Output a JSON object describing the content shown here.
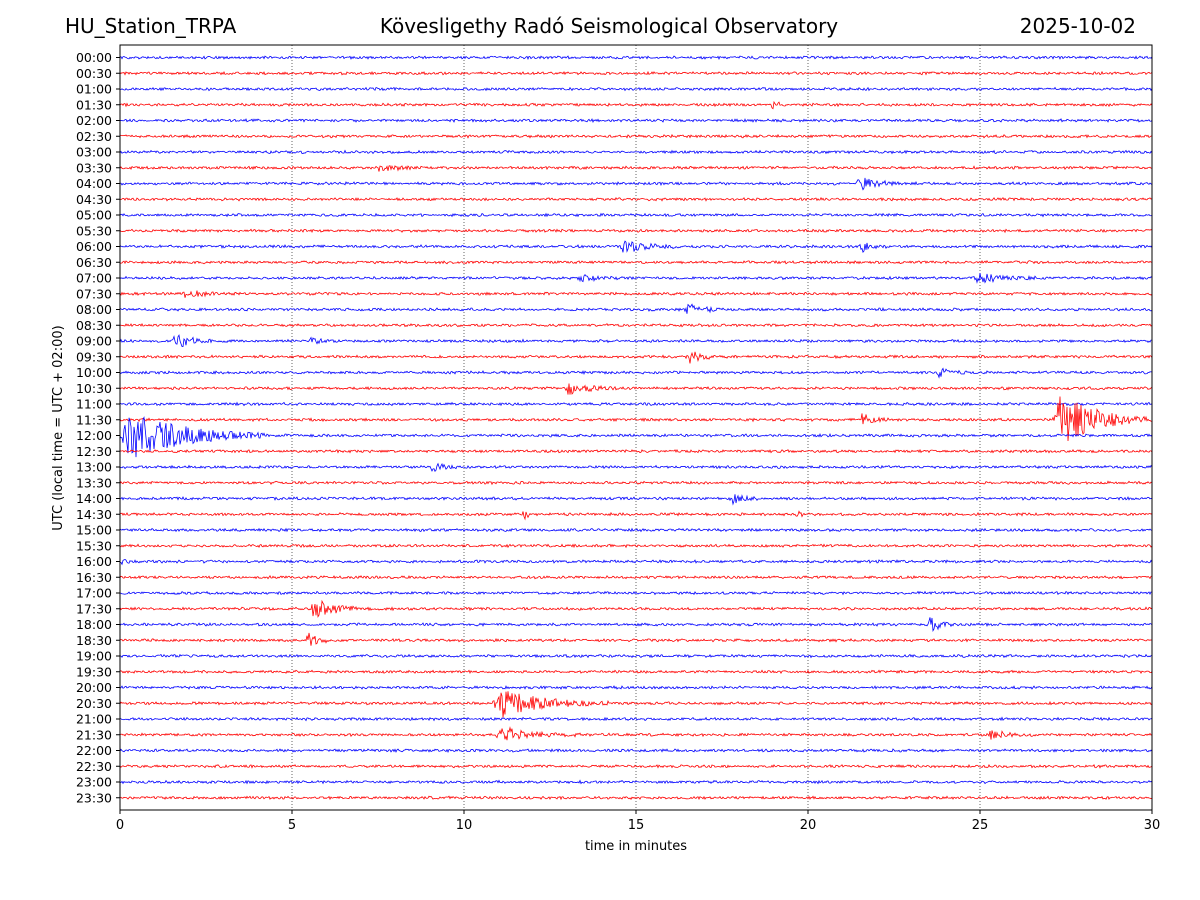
{
  "header": {
    "station": "HU_Station_TRPA",
    "title": "Kövesligethy Radó Seismological Observatory",
    "date": "2025-10-02"
  },
  "chart_data": {
    "type": "line",
    "title": "Kövesligethy Radó Seismological Observatory",
    "xlabel": "time in minutes",
    "ylabel": "UTC (local time = UTC + 02:00)",
    "xlim": [
      0,
      30
    ],
    "xticks": [
      0,
      5,
      10,
      15,
      20,
      25,
      30
    ],
    "xtick_labels": [
      "0",
      "5",
      "10",
      "15",
      "20",
      "25",
      "30"
    ],
    "grid": "vertical dotted at x ticks",
    "row_labels": [
      "00:00",
      "00:30",
      "01:00",
      "01:30",
      "02:00",
      "02:30",
      "03:00",
      "03:30",
      "04:00",
      "04:30",
      "05:00",
      "05:30",
      "06:00",
      "06:30",
      "07:00",
      "07:30",
      "08:00",
      "08:30",
      "09:00",
      "09:30",
      "10:00",
      "10:30",
      "11:00",
      "11:30",
      "12:00",
      "12:30",
      "13:00",
      "13:30",
      "14:00",
      "14:30",
      "15:00",
      "15:30",
      "16:00",
      "16:30",
      "17:00",
      "17:30",
      "18:00",
      "18:30",
      "19:00",
      "19:30",
      "20:00",
      "20:30",
      "21:00",
      "21:30",
      "22:00",
      "22:30",
      "23:00",
      "23:30"
    ],
    "trace_colors": [
      "#0000ff",
      "#ff0000"
    ],
    "noise_amplitude": 1.2,
    "events": [
      {
        "row": 3,
        "start": 18.9,
        "dur": 0.5,
        "amp": 4
      },
      {
        "row": 7,
        "start": 7.4,
        "dur": 1.5,
        "amp": 4
      },
      {
        "row": 8,
        "start": 21.4,
        "dur": 1.5,
        "amp": 6
      },
      {
        "row": 12,
        "start": 14.5,
        "dur": 1.8,
        "amp": 6
      },
      {
        "row": 12,
        "start": 21.5,
        "dur": 0.8,
        "amp": 5
      },
      {
        "row": 14,
        "start": 13.2,
        "dur": 1.3,
        "amp": 4
      },
      {
        "row": 14,
        "start": 24.8,
        "dur": 1.8,
        "amp": 5
      },
      {
        "row": 15,
        "start": 1.8,
        "dur": 1.6,
        "amp": 4
      },
      {
        "row": 16,
        "start": 16.4,
        "dur": 1.3,
        "amp": 6
      },
      {
        "row": 18,
        "start": 1.5,
        "dur": 1.2,
        "amp": 9
      },
      {
        "row": 18,
        "start": 5.5,
        "dur": 0.8,
        "amp": 4
      },
      {
        "row": 19,
        "start": 16.5,
        "dur": 0.8,
        "amp": 7
      },
      {
        "row": 21,
        "start": 12.9,
        "dur": 1.6,
        "amp": 6
      },
      {
        "row": 20,
        "start": 23.7,
        "dur": 1.3,
        "amp": 4
      },
      {
        "row": 23,
        "start": 21.5,
        "dur": 0.9,
        "amp": 7
      },
      {
        "row": 23,
        "start": 27.1,
        "dur": 2.9,
        "amp": 28
      },
      {
        "row": 24,
        "start": 0.0,
        "dur": 4.2,
        "amp": 24
      },
      {
        "row": 26,
        "start": 9.0,
        "dur": 1.2,
        "amp": 4
      },
      {
        "row": 28,
        "start": 17.7,
        "dur": 1.0,
        "amp": 5
      },
      {
        "row": 29,
        "start": 11.7,
        "dur": 0.4,
        "amp": 6
      },
      {
        "row": 29,
        "start": 19.6,
        "dur": 0.3,
        "amp": 7
      },
      {
        "row": 32,
        "start": 0.0,
        "dur": 0.3,
        "amp": 4
      },
      {
        "row": 35,
        "start": 5.5,
        "dur": 1.8,
        "amp": 9
      },
      {
        "row": 36,
        "start": 23.5,
        "dur": 0.7,
        "amp": 10
      },
      {
        "row": 37,
        "start": 5.4,
        "dur": 0.8,
        "amp": 8
      },
      {
        "row": 41,
        "start": 10.8,
        "dur": 3.4,
        "amp": 14
      },
      {
        "row": 43,
        "start": 10.9,
        "dur": 2.8,
        "amp": 7
      },
      {
        "row": 43,
        "start": 25.2,
        "dur": 1.4,
        "amp": 4
      }
    ]
  }
}
